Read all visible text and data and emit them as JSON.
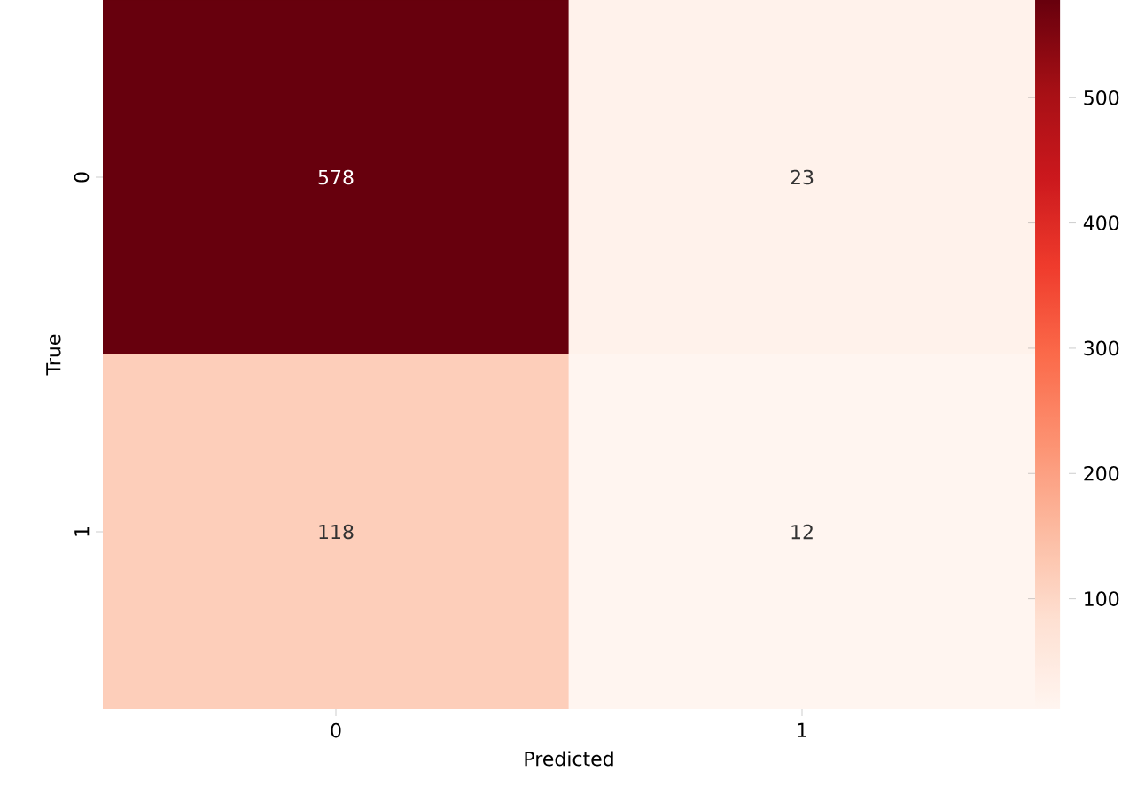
{
  "chart_data": {
    "type": "heatmap",
    "xlabel": "Predicted",
    "ylabel": "True",
    "categories": [
      "0",
      "1"
    ],
    "y_categories": [
      "0",
      "1"
    ],
    "cells": [
      [
        578,
        23
      ],
      [
        118,
        12
      ]
    ],
    "clim": [
      12,
      578
    ],
    "cticks": [
      100,
      200,
      300,
      400,
      500
    ],
    "data_labels": true
  }
}
